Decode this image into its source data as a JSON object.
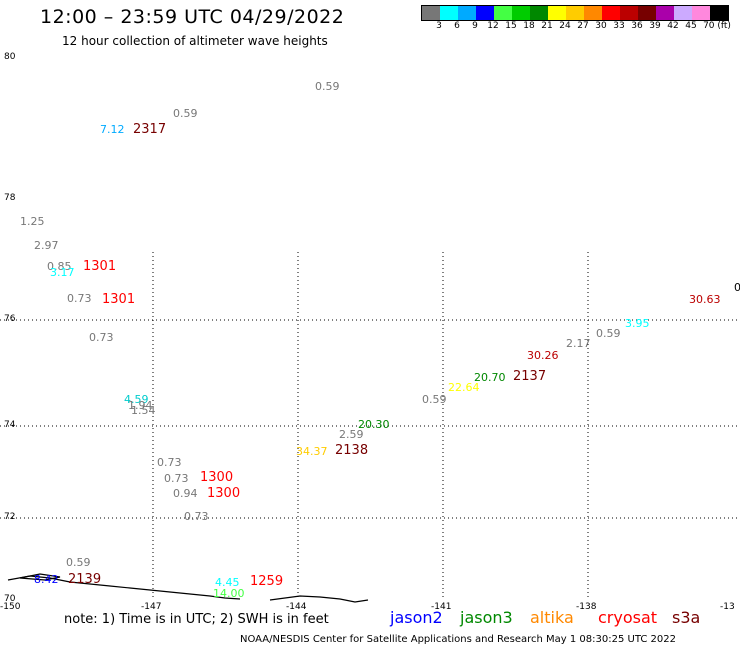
{
  "header": {
    "title": "12:00 – 23:59 UTC 04/29/2022",
    "subtitle": "12 hour collection of altimeter wave heights"
  },
  "legend": {
    "colors": [
      "#777777",
      "#00ffff",
      "#00aaff",
      "#0000ff",
      "#44ff44",
      "#00cc00",
      "#008800",
      "#ffff00",
      "#ffcc00",
      "#ff8800",
      "#ff0000",
      "#bb0000",
      "#770000",
      "#aa00aa",
      "#ccaaff",
      "#ff88dd",
      "#000000"
    ],
    "labels": [
      "3",
      "6",
      "9",
      "12",
      "15",
      "18",
      "21",
      "24",
      "27",
      "30",
      "33",
      "36",
      "39",
      "42",
      "45",
      "70 (ft)"
    ]
  },
  "axes": {
    "y_labels": [
      "80",
      "78",
      "76",
      "74",
      "72",
      "70"
    ],
    "x_labels": [
      "-150",
      "-147",
      "-144",
      "-141",
      "-138",
      "-13"
    ]
  },
  "observations": [
    {
      "text": "0.59",
      "color": "#777777"
    },
    {
      "text": "0.59",
      "color": "#777777"
    },
    {
      "text": "7.12",
      "color": "#00aaff"
    },
    {
      "text": "2317",
      "color": "#770000"
    },
    {
      "text": "1.25",
      "color": "#777777"
    },
    {
      "text": "2.97",
      "color": "#777777"
    },
    {
      "text": "0.85",
      "color": "#777777"
    },
    {
      "text": "3.17",
      "color": "#00ffff"
    },
    {
      "text": "1301",
      "color": "#ff0000"
    },
    {
      "text": "0.73",
      "color": "#777777"
    },
    {
      "text": "1301",
      "color": "#ff0000"
    },
    {
      "text": "0.73",
      "color": "#777777"
    },
    {
      "text": "4.59",
      "color": "#00cccc"
    },
    {
      "text": "1.94",
      "color": "#777777"
    },
    {
      "text": "1.54",
      "color": "#777777"
    },
    {
      "text": "0.73",
      "color": "#777777"
    },
    {
      "text": "0.73",
      "color": "#777777"
    },
    {
      "text": "1300",
      "color": "#ff0000"
    },
    {
      "text": "0.94",
      "color": "#777777"
    },
    {
      "text": "1300",
      "color": "#ff0000"
    },
    {
      "text": "0.73",
      "color": "#777777"
    },
    {
      "text": "20.30",
      "color": "#008800"
    },
    {
      "text": "2.59",
      "color": "#777777"
    },
    {
      "text": "34.37",
      "color": "#ffcc00"
    },
    {
      "text": "2138",
      "color": "#770000"
    },
    {
      "text": "0.59",
      "color": "#777777"
    },
    {
      "text": "22.64",
      "color": "#ffff00"
    },
    {
      "text": "20.70",
      "color": "#008800"
    },
    {
      "text": "2137",
      "color": "#770000"
    },
    {
      "text": "30.26",
      "color": "#bb0000"
    },
    {
      "text": "2.17",
      "color": "#777777"
    },
    {
      "text": "0.59",
      "color": "#777777"
    },
    {
      "text": "3.95",
      "color": "#00ffff"
    },
    {
      "text": "30.63",
      "color": "#bb0000"
    },
    {
      "text": "0",
      "color": "#000000"
    },
    {
      "text": "0.59",
      "color": "#777777"
    },
    {
      "text": "8.42",
      "color": "#0000ff"
    },
    {
      "text": "2139",
      "color": "#770000"
    },
    {
      "text": "4.45",
      "color": "#00ffff"
    },
    {
      "text": "14.00",
      "color": "#44ff44"
    },
    {
      "text": "1259",
      "color": "#ff0000"
    }
  ],
  "footer": {
    "note": "note:  1) Time is in UTC;  2) SWH is in feet",
    "satellites": [
      {
        "name": "jason2",
        "color": "#0000ff"
      },
      {
        "name": "jason3",
        "color": "#008800"
      },
      {
        "name": "altika",
        "color": "#ff8800"
      },
      {
        "name": "cryosat",
        "color": "#ff0000"
      },
      {
        "name": "s3a",
        "color": "#770000"
      }
    ],
    "credit": "NOAA/NESDIS Center for Satellite Applications and Research     May  1 08:30:25 UTC 2022"
  }
}
